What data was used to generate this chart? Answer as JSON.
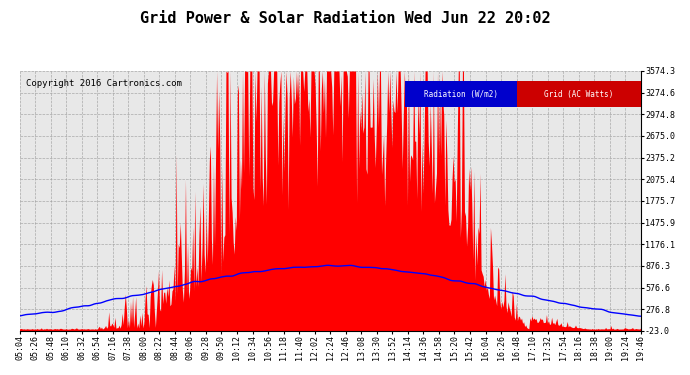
{
  "title": "Grid Power & Solar Radiation Wed Jun 22 20:02",
  "copyright": "Copyright 2016 Cartronics.com",
  "legend_radiation": "Radiation (W/m2)",
  "legend_grid": "Grid (AC Watts)",
  "legend_radiation_bg": "#0000cc",
  "legend_grid_bg": "#cc0000",
  "background_color": "#ffffff",
  "plot_bg_color": "#e8e8e8",
  "fill_color": "#ff0000",
  "line_color": "#0000ff",
  "grid_color": "#999999",
  "title_fontsize": 11,
  "copyright_fontsize": 6.5,
  "tick_fontsize": 6,
  "ymin": -23.0,
  "ymax": 3574.3,
  "yticks": [
    -23.0,
    276.8,
    576.6,
    876.3,
    1176.1,
    1475.9,
    1775.7,
    2075.4,
    2375.2,
    2675.0,
    2974.8,
    3274.6,
    3574.3
  ],
  "x_tick_labels": [
    "05:04",
    "05:26",
    "05:48",
    "06:10",
    "06:32",
    "06:54",
    "07:16",
    "07:38",
    "08:00",
    "08:22",
    "08:44",
    "09:06",
    "09:28",
    "09:50",
    "10:12",
    "10:34",
    "10:56",
    "11:18",
    "11:40",
    "12:02",
    "12:24",
    "12:46",
    "13:08",
    "13:30",
    "13:52",
    "14:14",
    "14:36",
    "14:58",
    "15:20",
    "15:42",
    "16:04",
    "16:26",
    "16:48",
    "17:10",
    "17:32",
    "17:54",
    "18:16",
    "18:38",
    "19:00",
    "19:24",
    "19:46"
  ],
  "n_points": 600
}
